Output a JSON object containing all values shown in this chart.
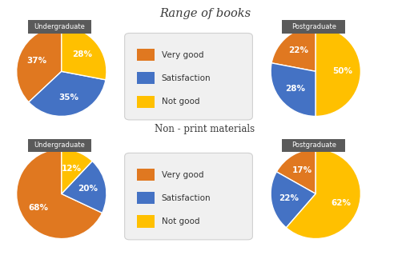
{
  "title_books": "Range of books",
  "title_nonprint": "Non - print materials",
  "label_undergraduate": "Undergraduate",
  "label_postgraduate": "Postgraduate",
  "legend_labels": [
    "Very good",
    "Satisfaction",
    "Not good"
  ],
  "colors": [
    "#E07820",
    "#4472C4",
    "#FFC000"
  ],
  "books_undergrad": [
    37,
    35,
    28
  ],
  "books_postgrad": [
    22,
    28,
    50
  ],
  "nonprint_undergrad": [
    68,
    20,
    12
  ],
  "nonprint_postgrad": [
    17,
    22,
    62
  ],
  "pct_labels_books_undergrad": [
    "37%",
    "35%",
    "28%"
  ],
  "pct_labels_books_postgrad": [
    "22%",
    "28%",
    "50%"
  ],
  "pct_labels_nonprint_undergrad": [
    "68%",
    "20%",
    "12%"
  ],
  "pct_labels_nonprint_postgrad": [
    "17%",
    "22%",
    "62%"
  ],
  "bg_color": "#FFFFFF",
  "label_bg_color": "#5A5A5A",
  "label_text_color": "#FFFFFF",
  "section_title_color": "#3A3A3A",
  "pct_text_color": "#FFFFFF",
  "startangles": [
    90,
    90,
    90,
    90
  ]
}
